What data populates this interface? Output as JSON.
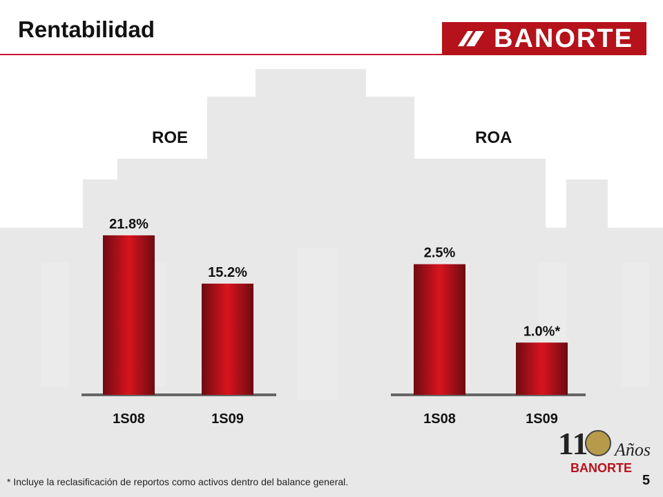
{
  "title": "Rentabilidad",
  "logo": {
    "text": "BANORTE"
  },
  "chart_data": [
    {
      "type": "bar",
      "title": "ROE",
      "categories": [
        "1S08",
        "1S09"
      ],
      "values": [
        21.8,
        15.2
      ],
      "labels": [
        "21.8%",
        "15.2%"
      ],
      "ylim": [
        0,
        25
      ],
      "xlabel": "",
      "ylabel": ""
    },
    {
      "type": "bar",
      "title": "ROA",
      "categories": [
        "1S08",
        "1S09"
      ],
      "values": [
        2.5,
        1.0
      ],
      "labels": [
        "2.5%",
        "1.0%*"
      ],
      "ylim": [
        0,
        3.5
      ],
      "xlabel": "",
      "ylabel": ""
    }
  ],
  "footnote": "* Incluye la reclasificación de reportos como activos dentro del balance general.",
  "page_number": "5",
  "anniversary": {
    "number": "110",
    "word": "Años",
    "brand": "BANORTE"
  },
  "colors": {
    "bar_dark": "#6e0b12",
    "bar_light": "#d9141e",
    "brand": "#b5121b",
    "axis": "#666666"
  }
}
